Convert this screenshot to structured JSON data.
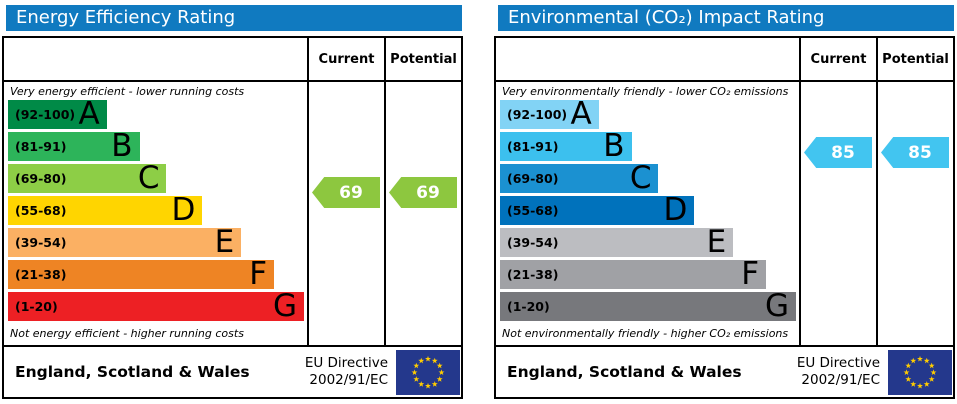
{
  "colors": {
    "header_bg": "#107ac0",
    "flag_bg": "#24388c",
    "star": "#ffcc00"
  },
  "panels": [
    {
      "title": "Energy Efficiency Rating",
      "columns": {
        "current": "Current",
        "potential": "Potential"
      },
      "top_caption": "Very energy efficient - lower running costs",
      "bottom_caption": "Not energy efficient - higher running costs",
      "bands": [
        {
          "range": "(92-100)",
          "grade": "A",
          "color": "#008a47",
          "width_pct": 33
        },
        {
          "range": "(81-91)",
          "grade": "B",
          "color": "#2db45a",
          "width_pct": 44
        },
        {
          "range": "(69-80)",
          "grade": "C",
          "color": "#8dce46",
          "width_pct": 53
        },
        {
          "range": "(55-68)",
          "grade": "D",
          "color": "#ffd500",
          "width_pct": 65
        },
        {
          "range": "(39-54)",
          "grade": "E",
          "color": "#fbb063",
          "width_pct": 78
        },
        {
          "range": "(21-38)",
          "grade": "F",
          "color": "#ee8424",
          "width_pct": 89
        },
        {
          "range": "(1-20)",
          "grade": "G",
          "color": "#ed2024",
          "width_pct": 99
        }
      ],
      "current": {
        "value": "69",
        "color": "#8dc73f",
        "arrow_row": 2.4
      },
      "potential": {
        "value": "69",
        "color": "#8dc73f",
        "arrow_row": 2.4
      },
      "footer": {
        "region": "England, Scotland & Wales",
        "directive_line1": "EU Directive",
        "directive_line2": "2002/91/EC"
      }
    },
    {
      "title": "Environmental (CO₂) Impact Rating",
      "columns": {
        "current": "Current",
        "potential": "Potential"
      },
      "top_caption": "Very environmentally friendly - lower CO₂ emissions",
      "bottom_caption": "Not environmentally friendly - higher CO₂ emissions",
      "bands": [
        {
          "range": "(92-100)",
          "grade": "A",
          "color": "#82d3f5",
          "width_pct": 33
        },
        {
          "range": "(81-91)",
          "grade": "B",
          "color": "#3cc0ee",
          "width_pct": 44
        },
        {
          "range": "(69-80)",
          "grade": "C",
          "color": "#1b91d1",
          "width_pct": 53
        },
        {
          "range": "(55-68)",
          "grade": "D",
          "color": "#0072bc",
          "width_pct": 65
        },
        {
          "range": "(39-54)",
          "grade": "E",
          "color": "#bcbdc1",
          "width_pct": 78
        },
        {
          "range": "(21-38)",
          "grade": "F",
          "color": "#a0a1a5",
          "width_pct": 89
        },
        {
          "range": "(1-20)",
          "grade": "G",
          "color": "#77787c",
          "width_pct": 99
        }
      ],
      "current": {
        "value": "85",
        "color": "#42c5f0",
        "arrow_row": 1.15
      },
      "potential": {
        "value": "85",
        "color": "#42c5f0",
        "arrow_row": 1.15
      },
      "footer": {
        "region": "England, Scotland & Wales",
        "directive_line1": "EU Directive",
        "directive_line2": "2002/91/EC"
      }
    }
  ],
  "chart_data": [
    {
      "type": "bar",
      "title": "Energy Efficiency Rating",
      "categories": [
        "A (92-100)",
        "B (81-91)",
        "C (69-80)",
        "D (55-68)",
        "E (39-54)",
        "F (21-38)",
        "G (1-20)"
      ],
      "values": [
        33,
        44,
        53,
        65,
        78,
        89,
        99
      ],
      "current": 69,
      "potential": 69,
      "current_band": "C",
      "potential_band": "C",
      "top_label": "Very energy efficient - lower running costs",
      "bottom_label": "Not energy efficient - higher running costs",
      "footer": "England, Scotland & Wales — EU Directive 2002/91/EC"
    },
    {
      "type": "bar",
      "title": "Environmental (CO₂) Impact Rating",
      "categories": [
        "A (92-100)",
        "B (81-91)",
        "C (69-80)",
        "D (55-68)",
        "E (39-54)",
        "F (21-38)",
        "G (1-20)"
      ],
      "values": [
        33,
        44,
        53,
        65,
        78,
        89,
        99
      ],
      "current": 85,
      "potential": 85,
      "current_band": "B",
      "potential_band": "B",
      "top_label": "Very environmentally friendly - lower CO₂ emissions",
      "bottom_label": "Not environmentally friendly - higher CO₂ emissions",
      "footer": "England, Scotland & Wales — EU Directive 2002/91/EC"
    }
  ]
}
